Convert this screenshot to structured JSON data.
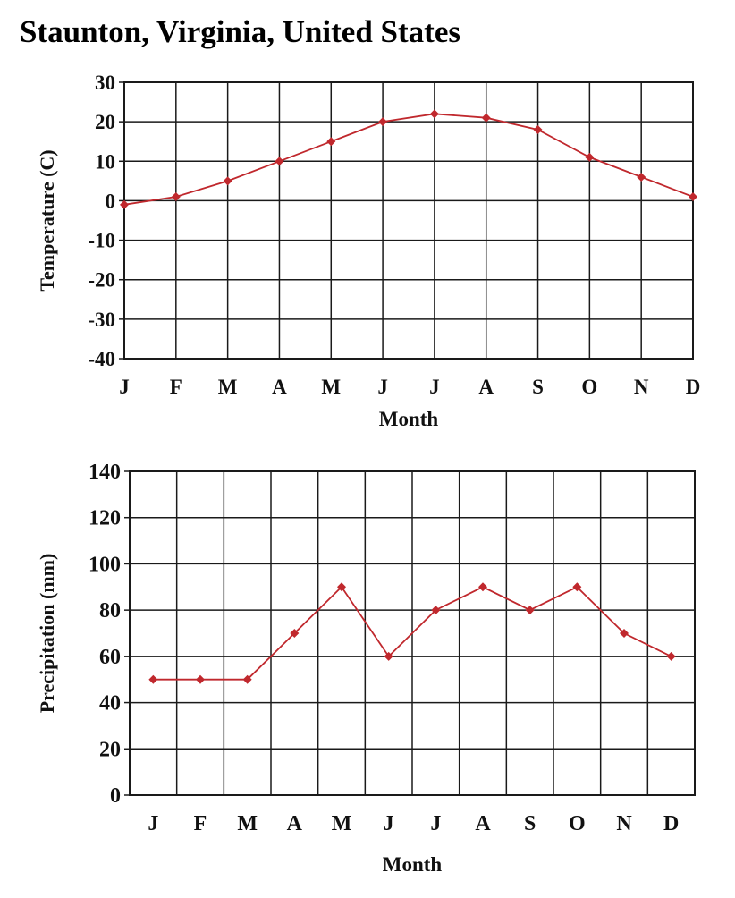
{
  "page": {
    "title": "Staunton, Virginia, United States"
  },
  "colors": {
    "series": "#c0282d",
    "grid": "#1a1a1a",
    "text": "#111111",
    "background": "#ffffff"
  },
  "chart_data": [
    {
      "type": "line",
      "categories": [
        "J",
        "F",
        "M",
        "A",
        "M",
        "J",
        "J",
        "A",
        "S",
        "O",
        "N",
        "D"
      ],
      "values": [
        -1,
        1,
        5,
        10,
        15,
        20,
        22,
        21,
        18,
        11,
        6,
        1
      ],
      "title": "",
      "xlabel": "Month",
      "ylabel": "Temperature (C)",
      "ylim": [
        -40,
        30
      ],
      "yticks": [
        "30",
        "20",
        "10",
        "0",
        "-10",
        "-20",
        "-30",
        "-40"
      ],
      "grid": true,
      "legend": "none"
    },
    {
      "type": "line",
      "categories": [
        "J",
        "F",
        "M",
        "A",
        "M",
        "J",
        "J",
        "A",
        "S",
        "O",
        "N",
        "D"
      ],
      "values": [
        50,
        50,
        50,
        70,
        90,
        60,
        80,
        90,
        80,
        90,
        70,
        60
      ],
      "title": "",
      "xlabel": "Month",
      "ylabel": "Precipitation (mm)",
      "ylim": [
        0,
        140
      ],
      "yticks": [
        "140",
        "120",
        "100",
        "80",
        "60",
        "40",
        "20",
        "0"
      ],
      "grid": true,
      "legend": "none"
    }
  ]
}
